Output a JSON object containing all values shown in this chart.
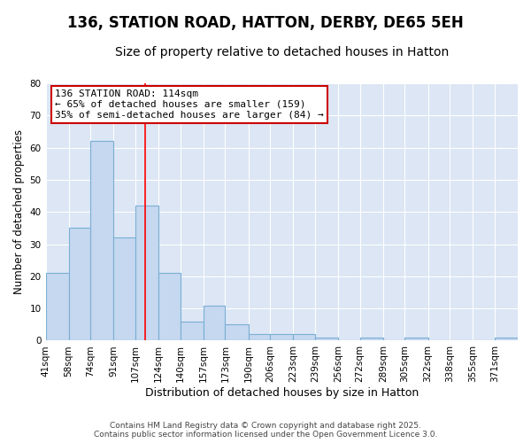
{
  "title1": "136, STATION ROAD, HATTON, DERBY, DE65 5EH",
  "title2": "Size of property relative to detached houses in Hatton",
  "xlabel": "Distribution of detached houses by size in Hatton",
  "ylabel": "Number of detached properties",
  "bar_values": [
    21,
    35,
    62,
    32,
    42,
    21,
    6,
    11,
    5,
    2,
    2,
    2,
    1,
    0,
    1,
    0,
    1,
    0,
    0,
    0,
    1
  ],
  "bin_edges": [
    41,
    58,
    74,
    91,
    107,
    124,
    140,
    157,
    173,
    190,
    206,
    223,
    239,
    256,
    272,
    289,
    305,
    322,
    338,
    355,
    371,
    388
  ],
  "x_tick_labels": [
    "41sqm",
    "58sqm",
    "74sqm",
    "91sqm",
    "107sqm",
    "124sqm",
    "140sqm",
    "157sqm",
    "173sqm",
    "190sqm",
    "206sqm",
    "223sqm",
    "239sqm",
    "256sqm",
    "272sqm",
    "289sqm",
    "305sqm",
    "322sqm",
    "338sqm",
    "355sqm",
    "371sqm"
  ],
  "bar_color": "#c5d8f0",
  "bar_edge_color": "#7bafd4",
  "red_line_x": 114,
  "ylim": [
    0,
    80
  ],
  "yticks": [
    0,
    10,
    20,
    30,
    40,
    50,
    60,
    70,
    80
  ],
  "annotation_title": "136 STATION ROAD: 114sqm",
  "annotation_line1": "← 65% of detached houses are smaller (159)",
  "annotation_line2": "35% of semi-detached houses are larger (84) →",
  "annotation_box_facecolor": "#ffffff",
  "annotation_box_edgecolor": "#cc0000",
  "fig_facecolor": "#ffffff",
  "axes_facecolor": "#dce6f5",
  "grid_color": "#ffffff",
  "footer": "Contains HM Land Registry data © Crown copyright and database right 2025.\nContains public sector information licensed under the Open Government Licence 3.0.",
  "title1_fontsize": 12,
  "title2_fontsize": 10,
  "xlabel_fontsize": 9,
  "ylabel_fontsize": 8.5,
  "tick_fontsize": 7.5,
  "annotation_fontsize": 8,
  "footer_fontsize": 6.5
}
